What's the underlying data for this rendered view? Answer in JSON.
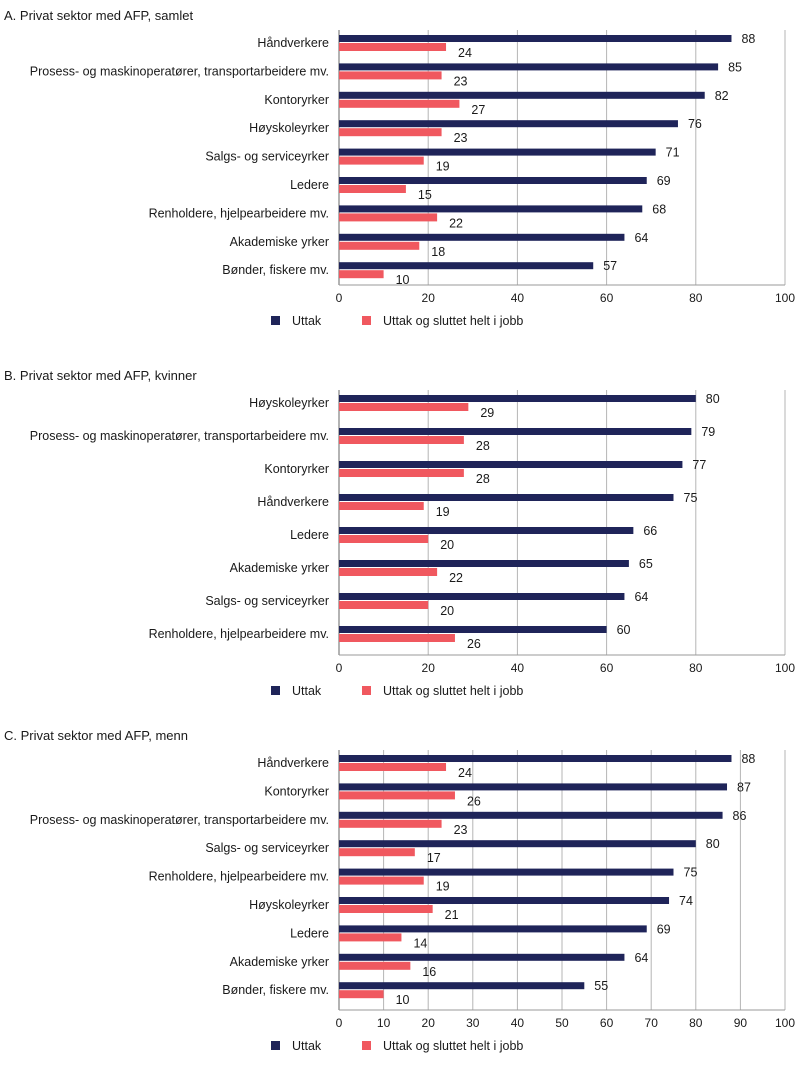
{
  "colors": {
    "uttak": "#1f2459",
    "sluttet": "#f0585f",
    "grid": "#b5b5b5",
    "axis": "#9a9a9a"
  },
  "legend": {
    "series1": "Uttak",
    "series2": "Uttak og sluttet helt i jobb"
  },
  "chart_data": [
    {
      "type": "bar",
      "orientation": "horizontal",
      "title": "A.  Privat sektor med AFP, samlet",
      "categories": [
        "Håndverkere",
        "Prosess- og maskinoperatører, transportarbeidere mv.",
        "Kontoryrker",
        "Høyskoleyrker",
        "Salgs- og serviceyrker",
        "Ledere",
        "Renholdere, hjelpearbeidere mv.",
        "Akademiske yrker",
        "Bønder, fiskere mv."
      ],
      "series": [
        {
          "name": "Uttak",
          "values": [
            88,
            85,
            82,
            76,
            71,
            69,
            68,
            64,
            57
          ]
        },
        {
          "name": "Uttak og sluttet helt i jobb",
          "values": [
            24,
            23,
            27,
            23,
            19,
            15,
            22,
            18,
            10
          ]
        }
      ],
      "xlim": [
        0,
        100
      ],
      "xticks": [
        0,
        20,
        40,
        60,
        80,
        100
      ],
      "grid": true,
      "legend_position": "bottom"
    },
    {
      "type": "bar",
      "orientation": "horizontal",
      "title": "B.  Privat sektor med AFP, kvinner",
      "categories": [
        "Høyskoleyrker",
        "Prosess- og maskinoperatører, transportarbeidere mv.",
        "Kontoryrker",
        "Håndverkere",
        "Ledere",
        "Akademiske yrker",
        "Salgs- og serviceyrker",
        "Renholdere, hjelpearbeidere mv."
      ],
      "series": [
        {
          "name": "Uttak",
          "values": [
            80,
            79,
            77,
            75,
            66,
            65,
            64,
            60
          ]
        },
        {
          "name": "Uttak og sluttet helt i jobb",
          "values": [
            29,
            28,
            28,
            19,
            20,
            22,
            20,
            26
          ]
        }
      ],
      "xlim": [
        0,
        100
      ],
      "xticks": [
        0,
        20,
        40,
        60,
        80,
        100
      ],
      "grid": true,
      "legend_position": "bottom"
    },
    {
      "type": "bar",
      "orientation": "horizontal",
      "title": "C.  Privat sektor med AFP, menn",
      "categories": [
        "Håndverkere",
        "Kontoryrker",
        "Prosess- og maskinoperatører, transportarbeidere mv.",
        "Salgs- og serviceyrker",
        "Renholdere, hjelpearbeidere mv.",
        "Høyskoleyrker",
        "Ledere",
        "Akademiske yrker",
        "Bønder, fiskere mv."
      ],
      "series": [
        {
          "name": "Uttak",
          "values": [
            88,
            87,
            86,
            80,
            75,
            74,
            69,
            64,
            55
          ]
        },
        {
          "name": "Uttak og sluttet helt i jobb",
          "values": [
            24,
            26,
            23,
            17,
            19,
            21,
            14,
            16,
            10
          ]
        }
      ],
      "xlim": [
        0,
        100
      ],
      "xticks": [
        0,
        10,
        20,
        30,
        40,
        50,
        60,
        70,
        80,
        90,
        100
      ],
      "grid": true,
      "legend_position": "bottom"
    }
  ]
}
